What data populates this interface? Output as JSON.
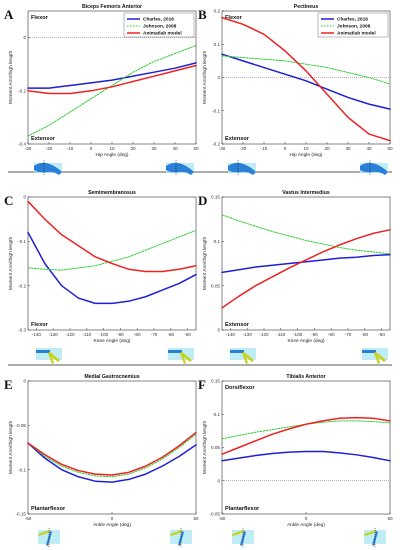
{
  "figure": {
    "separator_color": "#222222",
    "series_styles": [
      {
        "color": "#1f1fd6",
        "dash": ""
      },
      {
        "color": "#2ecc2e",
        "dash": "1.6,1.4"
      },
      {
        "color": "#ee2222",
        "dash": ""
      }
    ],
    "legend_labels": [
      "Charles, 2016",
      "Johnson, 2008",
      "Animatlab model"
    ],
    "shared_y_label": "Moment Arm/thigh length"
  },
  "chart_data": [
    {
      "letter": "A",
      "title": "Biceps Femoris Anterior",
      "type": "line",
      "xlabel": "Hip Angle (deg)",
      "ylabel": "Moment Arm/thigh length",
      "xlim": [
        -30,
        50
      ],
      "ylim": [
        -0.4,
        0.1
      ],
      "xticks": [
        -30,
        -20,
        -10,
        0,
        10,
        20,
        30,
        40,
        50
      ],
      "yticks": [
        -0.4,
        -0.2,
        0
      ],
      "zero_line": true,
      "top_text": "Flexor",
      "bottom_text": "Extensor",
      "legend": true,
      "legend_position": "top-right",
      "x": [
        -30,
        -20,
        -10,
        0,
        10,
        20,
        30,
        40,
        50
      ],
      "series": [
        {
          "name": "Charles, 2016",
          "values": [
            -0.19,
            -0.19,
            -0.18,
            -0.17,
            -0.16,
            -0.145,
            -0.13,
            -0.115,
            -0.095
          ]
        },
        {
          "name": "Johnson, 2008",
          "values": [
            -0.37,
            -0.33,
            -0.28,
            -0.23,
            -0.18,
            -0.13,
            -0.09,
            -0.06,
            -0.03
          ]
        },
        {
          "name": "Animatlab model",
          "values": [
            -0.2,
            -0.21,
            -0.21,
            -0.2,
            -0.185,
            -0.165,
            -0.145,
            -0.125,
            -0.105
          ]
        }
      ]
    },
    {
      "letter": "B",
      "title": "Pectineus",
      "type": "line",
      "xlabel": "Hip Angle (deg)",
      "ylabel": "Moment Arm/thigh length",
      "xlim": [
        -30,
        50
      ],
      "ylim": [
        -0.2,
        0.2
      ],
      "xticks": [
        -30,
        -20,
        -10,
        0,
        10,
        20,
        30,
        40,
        50
      ],
      "yticks": [
        -0.2,
        -0.1,
        0,
        0.1,
        0.2
      ],
      "zero_line": true,
      "top_text": "Flexor",
      "bottom_text": "Extensor",
      "legend": true,
      "legend_position": "top-right",
      "x": [
        -30,
        -20,
        -10,
        0,
        10,
        20,
        30,
        40,
        50
      ],
      "series": [
        {
          "name": "Charles, 2016",
          "values": [
            0.07,
            0.05,
            0.03,
            0.01,
            -0.01,
            -0.035,
            -0.06,
            -0.08,
            -0.095
          ]
        },
        {
          "name": "Johnson, 2008",
          "values": [
            0.065,
            0.06,
            0.055,
            0.05,
            0.04,
            0.03,
            0.015,
            0.0,
            -0.02
          ]
        },
        {
          "name": "Animatlab model",
          "values": [
            0.18,
            0.16,
            0.13,
            0.08,
            0.02,
            -0.05,
            -0.12,
            -0.17,
            -0.19
          ]
        }
      ]
    },
    {
      "letter": "C",
      "title": "Semimembranosus",
      "type": "line",
      "xlabel": "Knee Angle (deg)",
      "ylabel": "Moment Arm/thigh length",
      "xlim": [
        -145,
        -45
      ],
      "ylim": [
        -0.3,
        0
      ],
      "xticks": [
        -140,
        -130,
        -120,
        -110,
        -100,
        -90,
        -80,
        -70,
        -60,
        -50
      ],
      "yticks": [
        -0.3,
        -0.2,
        -0.1,
        0
      ],
      "zero_line": false,
      "top_text": "",
      "bottom_text": "Flexor",
      "legend": false,
      "x": [
        -145,
        -135,
        -125,
        -115,
        -105,
        -95,
        -85,
        -75,
        -65,
        -55,
        -45
      ],
      "series": [
        {
          "name": "Charles, 2016",
          "values": [
            -0.08,
            -0.15,
            -0.2,
            -0.228,
            -0.24,
            -0.24,
            -0.235,
            -0.225,
            -0.21,
            -0.195,
            -0.175
          ]
        },
        {
          "name": "Johnson, 2008",
          "values": [
            -0.16,
            -0.163,
            -0.165,
            -0.16,
            -0.155,
            -0.145,
            -0.135,
            -0.12,
            -0.105,
            -0.09,
            -0.075
          ]
        },
        {
          "name": "Animatlab model",
          "values": [
            -0.01,
            -0.05,
            -0.085,
            -0.11,
            -0.135,
            -0.15,
            -0.163,
            -0.168,
            -0.168,
            -0.163,
            -0.155
          ]
        }
      ]
    },
    {
      "letter": "D",
      "title": "Vastus Intermedius",
      "type": "line",
      "xlabel": "Knee Angle (deg)",
      "ylabel": "Moment Arm/thigh length",
      "xlim": [
        -145,
        -45
      ],
      "ylim": [
        0,
        0.15
      ],
      "xticks": [
        -140,
        -130,
        -120,
        -110,
        -100,
        -90,
        -80,
        -70,
        -60,
        -50
      ],
      "yticks": [
        0,
        0.05,
        0.1,
        0.15
      ],
      "zero_line": false,
      "top_text": "",
      "bottom_text": "Extensor",
      "legend": false,
      "x": [
        -145,
        -135,
        -125,
        -115,
        -105,
        -95,
        -85,
        -75,
        -65,
        -55,
        -45
      ],
      "series": [
        {
          "name": "Charles, 2016",
          "values": [
            0.065,
            0.068,
            0.071,
            0.073,
            0.075,
            0.077,
            0.079,
            0.081,
            0.082,
            0.084,
            0.085
          ]
        },
        {
          "name": "Johnson, 2008",
          "values": [
            0.13,
            0.123,
            0.117,
            0.111,
            0.106,
            0.101,
            0.097,
            0.093,
            0.09,
            0.088,
            0.086
          ]
        },
        {
          "name": "Animatlab model",
          "values": [
            0.025,
            0.038,
            0.05,
            0.06,
            0.07,
            0.079,
            0.088,
            0.096,
            0.103,
            0.109,
            0.113
          ]
        }
      ]
    },
    {
      "letter": "E",
      "title": "Medial Gastrocnemius",
      "type": "line",
      "xlabel": "Ankle Angle (deg)",
      "ylabel": "Moment Arm/thigh length",
      "xlim": [
        -50,
        50
      ],
      "ylim": [
        -0.15,
        0
      ],
      "xticks": [
        -50,
        0,
        50
      ],
      "yticks": [
        -0.15,
        -0.1,
        -0.05,
        0
      ],
      "zero_line": false,
      "top_text": "",
      "bottom_text": "Plantarflexor",
      "legend": false,
      "x": [
        -50,
        -40,
        -30,
        -20,
        -10,
        0,
        10,
        20,
        30,
        40,
        50
      ],
      "series": [
        {
          "name": "Charles, 2016",
          "values": [
            -0.07,
            -0.087,
            -0.1,
            -0.108,
            -0.113,
            -0.114,
            -0.111,
            -0.105,
            -0.096,
            -0.085,
            -0.072
          ]
        },
        {
          "name": "Johnson, 2008",
          "values": [
            -0.07,
            -0.085,
            -0.096,
            -0.103,
            -0.107,
            -0.108,
            -0.105,
            -0.098,
            -0.088,
            -0.075,
            -0.06
          ]
        },
        {
          "name": "Animatlab model",
          "values": [
            -0.07,
            -0.083,
            -0.094,
            -0.101,
            -0.105,
            -0.106,
            -0.103,
            -0.096,
            -0.086,
            -0.073,
            -0.058
          ]
        }
      ]
    },
    {
      "letter": "F",
      "title": "Tibialis Anterior",
      "type": "line",
      "xlabel": "Ankle Angle (deg)",
      "ylabel": "Moment Arm/thigh length",
      "xlim": [
        -50,
        50
      ],
      "ylim": [
        -0.05,
        0.15
      ],
      "xticks": [
        -50,
        0,
        50
      ],
      "yticks": [
        -0.05,
        0,
        0.05,
        0.1,
        0.15
      ],
      "zero_line": true,
      "top_text": "Dorsiflexor",
      "bottom_text": "Plantarflexor",
      "legend": false,
      "x": [
        -50,
        -40,
        -30,
        -20,
        -10,
        0,
        10,
        20,
        30,
        40,
        50
      ],
      "series": [
        {
          "name": "Charles, 2016",
          "values": [
            0.03,
            0.034,
            0.038,
            0.041,
            0.043,
            0.044,
            0.044,
            0.042,
            0.039,
            0.035,
            0.03
          ]
        },
        {
          "name": "Johnson, 2008",
          "values": [
            0.063,
            0.068,
            0.073,
            0.077,
            0.081,
            0.085,
            0.088,
            0.09,
            0.09,
            0.089,
            0.087
          ]
        },
        {
          "name": "Animatlab model",
          "values": [
            0.04,
            0.05,
            0.06,
            0.07,
            0.078,
            0.085,
            0.09,
            0.094,
            0.095,
            0.094,
            0.09
          ]
        }
      ]
    }
  ]
}
